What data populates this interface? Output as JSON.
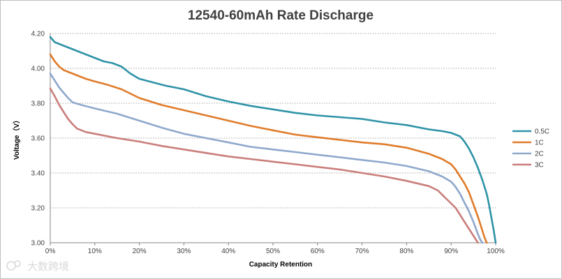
{
  "chart_data": {
    "type": "line",
    "title": "12540-60mAh Rate Discharge",
    "xlabel": "Capacity Retention",
    "ylabel": "Voltage（V）",
    "xlim": [
      0,
      100
    ],
    "ylim": [
      3.0,
      4.2
    ],
    "x_ticks": [
      0,
      10,
      20,
      30,
      40,
      50,
      60,
      70,
      80,
      90,
      100
    ],
    "x_tick_labels": [
      "0%",
      "10%",
      "20%",
      "30%",
      "40%",
      "50%",
      "60%",
      "70%",
      "80%",
      "90%",
      "100%"
    ],
    "y_ticks": [
      3.0,
      3.2,
      3.4,
      3.6,
      3.8,
      4.0,
      4.2
    ],
    "y_tick_labels": [
      "3.00",
      "3.20",
      "3.40",
      "3.60",
      "3.80",
      "4.00",
      "4.20"
    ],
    "grid": "horizontal-dotted",
    "legend_position": "right",
    "series": [
      {
        "name": "0.5C",
        "color": "#2e93a7",
        "x": [
          0,
          1,
          3,
          5,
          8,
          10,
          12,
          14,
          16,
          18,
          20,
          23,
          26,
          30,
          35,
          40,
          45,
          50,
          55,
          60,
          65,
          70,
          75,
          80,
          85,
          88,
          90,
          92,
          93,
          94,
          95,
          96,
          97,
          98,
          98.5,
          99,
          99.5,
          100
        ],
        "y": [
          4.18,
          4.15,
          4.13,
          4.11,
          4.08,
          4.06,
          4.04,
          4.03,
          4.01,
          3.97,
          3.94,
          3.92,
          3.9,
          3.88,
          3.84,
          3.81,
          3.785,
          3.765,
          3.745,
          3.73,
          3.72,
          3.71,
          3.69,
          3.675,
          3.65,
          3.64,
          3.63,
          3.61,
          3.58,
          3.54,
          3.49,
          3.43,
          3.36,
          3.28,
          3.22,
          3.15,
          3.08,
          3.0
        ]
      },
      {
        "name": "1C",
        "color": "#e07b2a",
        "x": [
          0,
          1,
          2,
          3,
          5,
          8,
          10,
          13,
          16,
          20,
          25,
          30,
          35,
          40,
          45,
          50,
          55,
          60,
          65,
          70,
          75,
          80,
          85,
          88,
          90,
          91,
          92,
          93,
          94,
          95,
          96,
          97,
          97.5,
          98
        ],
        "y": [
          4.08,
          4.04,
          4.01,
          3.99,
          3.97,
          3.94,
          3.925,
          3.905,
          3.88,
          3.83,
          3.79,
          3.76,
          3.73,
          3.7,
          3.67,
          3.645,
          3.62,
          3.605,
          3.59,
          3.575,
          3.565,
          3.545,
          3.51,
          3.48,
          3.45,
          3.42,
          3.38,
          3.34,
          3.29,
          3.22,
          3.15,
          3.07,
          3.03,
          3.0
        ]
      },
      {
        "name": "2C",
        "color": "#8fa8cc",
        "x": [
          0,
          1,
          2,
          3,
          4,
          5,
          7,
          10,
          15,
          20,
          25,
          30,
          35,
          40,
          45,
          50,
          55,
          60,
          65,
          70,
          75,
          80,
          85,
          88,
          90,
          91,
          92,
          93,
          94,
          95,
          96,
          96.5,
          97
        ],
        "y": [
          3.97,
          3.93,
          3.89,
          3.86,
          3.83,
          3.805,
          3.79,
          3.77,
          3.74,
          3.7,
          3.66,
          3.625,
          3.6,
          3.575,
          3.55,
          3.535,
          3.52,
          3.505,
          3.49,
          3.475,
          3.46,
          3.44,
          3.41,
          3.38,
          3.35,
          3.32,
          3.28,
          3.23,
          3.18,
          3.12,
          3.05,
          3.02,
          3.0
        ]
      },
      {
        "name": "3C",
        "color": "#c97e7b",
        "x": [
          0,
          1,
          2,
          3,
          4,
          5,
          6,
          8,
          10,
          15,
          20,
          25,
          30,
          35,
          40,
          45,
          50,
          55,
          60,
          65,
          70,
          75,
          80,
          85,
          87,
          89,
          91,
          92,
          93,
          94,
          95,
          95.5,
          96
        ],
        "y": [
          3.885,
          3.84,
          3.79,
          3.75,
          3.71,
          3.68,
          3.655,
          3.635,
          3.625,
          3.6,
          3.58,
          3.555,
          3.535,
          3.515,
          3.495,
          3.48,
          3.465,
          3.45,
          3.435,
          3.42,
          3.4,
          3.38,
          3.355,
          3.325,
          3.3,
          3.25,
          3.2,
          3.16,
          3.12,
          3.08,
          3.04,
          3.02,
          3.0
        ]
      }
    ]
  },
  "watermark": {
    "text": "大数跨境",
    "icon": "logo-icon"
  }
}
